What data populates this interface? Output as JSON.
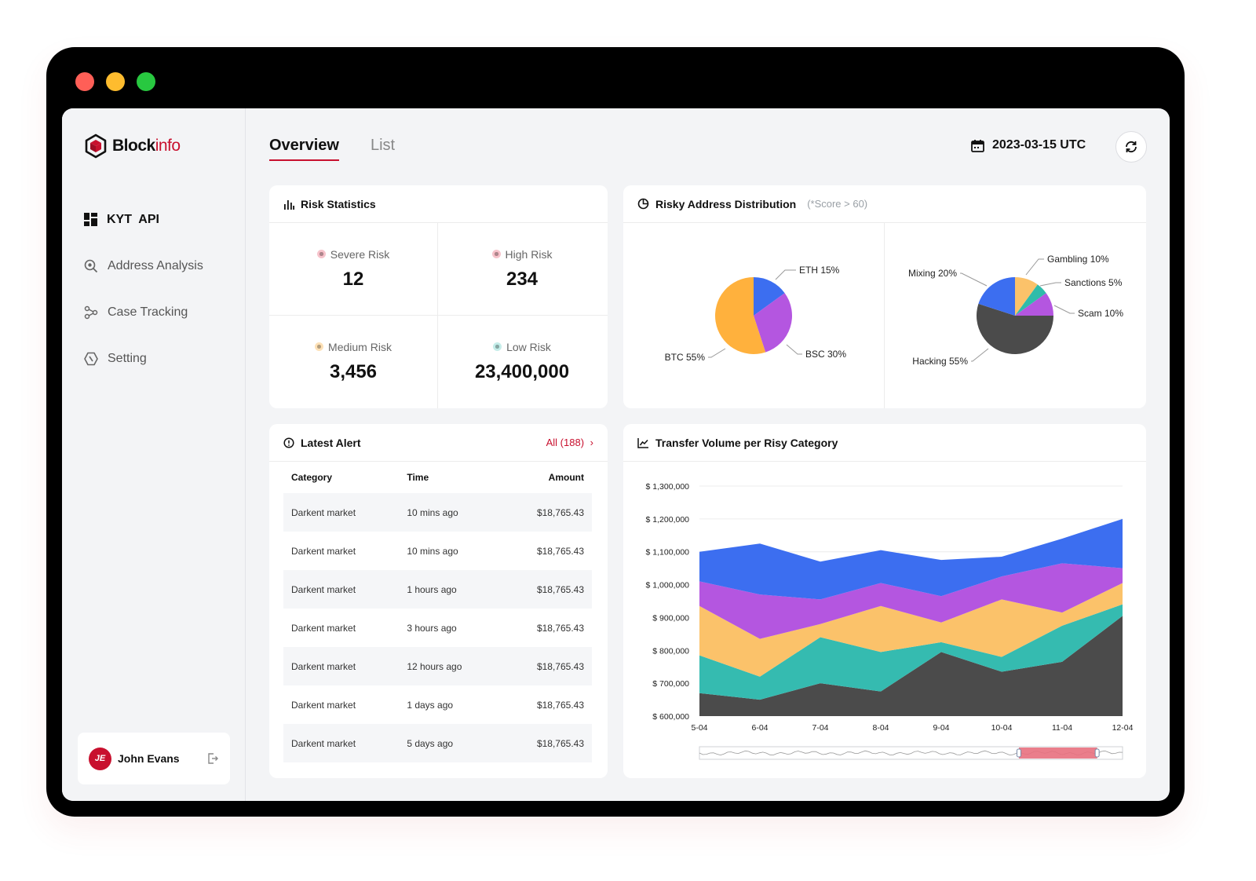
{
  "brand": {
    "name_bold": "Block",
    "name_light": "info"
  },
  "sidebar": {
    "items": [
      {
        "label": "KYT  API",
        "icon": "dashboard-icon"
      },
      {
        "label": "Address Analysis",
        "icon": "search-analysis-icon"
      },
      {
        "label": "Case Tracking",
        "icon": "graph-nodes-icon"
      },
      {
        "label": "Setting",
        "icon": "settings-hexagon-icon"
      }
    ],
    "user": {
      "initials": "JE",
      "name": "John Evans"
    }
  },
  "header": {
    "tabs": [
      {
        "label": "Overview"
      },
      {
        "label": "List"
      }
    ],
    "date": "2023-03-15 UTC"
  },
  "risk_statistics": {
    "title": "Risk Statistics",
    "items": [
      {
        "label": "Severe Risk",
        "value": "12",
        "color": "#c8102e"
      },
      {
        "label": "High Risk",
        "value": "234",
        "color": "#c8102e"
      },
      {
        "label": "Medium Risk",
        "value": "3,456",
        "color": "#f5a623"
      },
      {
        "label": "Low Risk",
        "value": "23,400,000",
        "color": "#2bb5a8"
      }
    ]
  },
  "distribution": {
    "title": "Risky Address Distribution",
    "note": "(*Score > 60)"
  },
  "alerts": {
    "title": "Latest Alert",
    "all_link": "All (188)",
    "columns": [
      "Category",
      "Time",
      "Amount"
    ],
    "rows": [
      {
        "category": "Darkent market",
        "time": "10 mins ago",
        "amount": "$18,765.43"
      },
      {
        "category": "Darkent market",
        "time": "10 mins ago",
        "amount": "$18,765.43"
      },
      {
        "category": "Darkent market",
        "time": "1 hours ago",
        "amount": "$18,765.43"
      },
      {
        "category": "Darkent market",
        "time": "3 hours ago",
        "amount": "$18,765.43"
      },
      {
        "category": "Darkent market",
        "time": "12 hours ago",
        "amount": "$18,765.43"
      },
      {
        "category": "Darkent market",
        "time": "1 days ago",
        "amount": "$18,765.43"
      },
      {
        "category": "Darkent market",
        "time": "5 days ago",
        "amount": "$18,765.43"
      }
    ]
  },
  "volume": {
    "title": "Transfer Volume per Risy Category"
  },
  "chart_data": [
    {
      "type": "pie",
      "slices": [
        {
          "label": "ETH 15%",
          "value": 15,
          "color": "#3c6ef0"
        },
        {
          "label": "BSC 30%",
          "value": 30,
          "color": "#b456e0"
        },
        {
          "label": "BTC 55%",
          "value": 55,
          "color": "#ffb13d"
        }
      ]
    },
    {
      "type": "pie",
      "slices": [
        {
          "label": "Gambling 10%",
          "value": 10,
          "color": "#fbc26a"
        },
        {
          "label": "Sanctions 5%",
          "value": 5,
          "color": "#2fbcaa"
        },
        {
          "label": "Scam 10%",
          "value": 10,
          "color": "#b456e0"
        },
        {
          "label": "Hacking 55%",
          "value": 55,
          "color": "#4b4b4b"
        },
        {
          "label": "Mixing 20%",
          "value": 20,
          "color": "#3c6ef0"
        }
      ]
    },
    {
      "type": "area",
      "stacked": true,
      "categories": [
        "5-04",
        "6-04",
        "7-04",
        "8-04",
        "9-04",
        "10-04",
        "11-04",
        "12-04"
      ],
      "yticks": [
        "$ 600,000",
        "$ 700,000",
        "$ 800,000",
        "$ 900,000",
        "$ 1,000,000",
        "$ 1,100,000",
        "$ 1,200,000",
        "$ 1,300,000"
      ],
      "ylim": [
        600000,
        1300000
      ],
      "series": [
        {
          "values": [
            670000,
            650000,
            700000,
            675000,
            795000,
            735000,
            765000,
            905000
          ],
          "color": "#4b4b4b"
        },
        {
          "values": [
            785000,
            720000,
            840000,
            795000,
            825000,
            780000,
            875000,
            940000
          ],
          "color": "#35bbb0"
        },
        {
          "values": [
            935000,
            835000,
            880000,
            935000,
            885000,
            955000,
            915000,
            1005000
          ],
          "color": "#fbc26a"
        },
        {
          "values": [
            1010000,
            970000,
            955000,
            1005000,
            965000,
            1025000,
            1065000,
            1050000
          ],
          "color": "#b456e0"
        },
        {
          "values": [
            1100000,
            1125000,
            1070000,
            1105000,
            1075000,
            1085000,
            1140000,
            1200000
          ],
          "color": "#3c6ef0"
        }
      ],
      "grid": true,
      "range_selector": {
        "start": 0.755,
        "end": 0.94
      }
    }
  ]
}
